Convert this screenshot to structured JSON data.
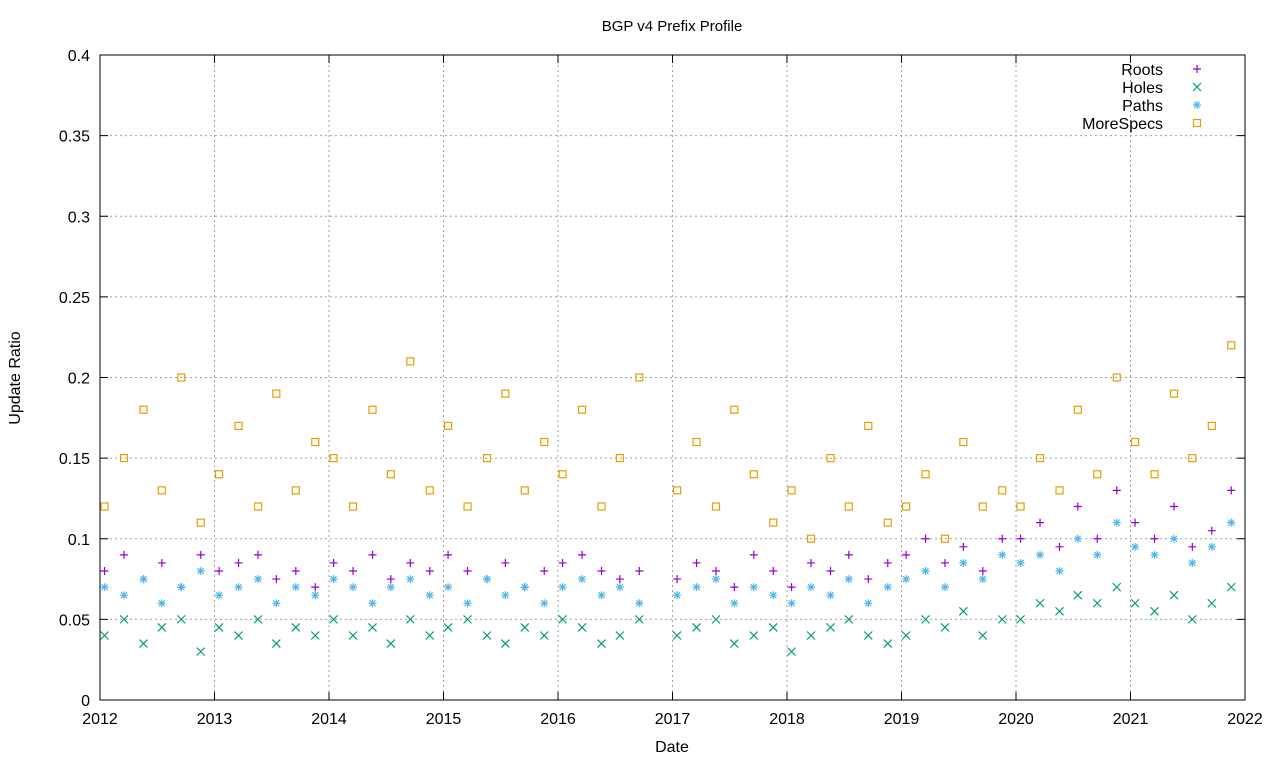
{
  "chart_data": {
    "type": "scatter",
    "title": "BGP v4 Prefix Profile",
    "xlabel": "Date",
    "ylabel": "Update Ratio",
    "xlim": [
      2012,
      2022
    ],
    "ylim": [
      0,
      0.4
    ],
    "grid": true,
    "legend_position": "top-right",
    "xticks": [
      "2012",
      "2013",
      "2014",
      "2015",
      "2016",
      "2017",
      "2018",
      "2019",
      "2020",
      "2021",
      "2022"
    ],
    "yticks": [
      "0",
      "0.05",
      "0.1",
      "0.15",
      "0.2",
      "0.25",
      "0.3",
      "0.35",
      "0.4"
    ],
    "x": [
      2012.04,
      2012.21,
      2012.38,
      2012.54,
      2012.71,
      2012.88,
      2013.04,
      2013.21,
      2013.38,
      2013.54,
      2013.71,
      2013.88,
      2014.04,
      2014.21,
      2014.38,
      2014.54,
      2014.71,
      2014.88,
      2015.04,
      2015.21,
      2015.38,
      2015.54,
      2015.71,
      2015.88,
      2016.04,
      2016.21,
      2016.38,
      2016.54,
      2016.71,
      2017.04,
      2017.21,
      2017.38,
      2017.54,
      2017.71,
      2017.88,
      2018.04,
      2018.21,
      2018.38,
      2018.54,
      2018.71,
      2018.88,
      2019.04,
      2019.21,
      2019.38,
      2019.54,
      2019.71,
      2019.88,
      2020.04,
      2020.21,
      2020.38,
      2020.54,
      2020.71,
      2020.88,
      2021.04,
      2021.21,
      2021.38,
      2021.54,
      2021.71,
      2021.88
    ],
    "series": [
      {
        "name": "Roots",
        "color": "#9400d3",
        "marker": "plus",
        "values": [
          0.08,
          0.09,
          0.075,
          0.085,
          0.07,
          0.09,
          0.08,
          0.085,
          0.09,
          0.075,
          0.08,
          0.07,
          0.085,
          0.08,
          0.09,
          0.075,
          0.085,
          0.08,
          0.09,
          0.08,
          0.075,
          0.085,
          0.07,
          0.08,
          0.085,
          0.09,
          0.08,
          0.075,
          0.08,
          0.075,
          0.085,
          0.08,
          0.07,
          0.09,
          0.08,
          0.07,
          0.085,
          0.08,
          0.09,
          0.075,
          0.085,
          0.09,
          0.1,
          0.085,
          0.095,
          0.08,
          0.1,
          0.1,
          0.11,
          0.095,
          0.12,
          0.1,
          0.13,
          0.11,
          0.1,
          0.12,
          0.095,
          0.105,
          0.13
        ]
      },
      {
        "name": "Holes",
        "color": "#009e73",
        "marker": "cross",
        "values": [
          0.04,
          0.05,
          0.035,
          0.045,
          0.05,
          0.03,
          0.045,
          0.04,
          0.05,
          0.035,
          0.045,
          0.04,
          0.05,
          0.04,
          0.045,
          0.035,
          0.05,
          0.04,
          0.045,
          0.05,
          0.04,
          0.035,
          0.045,
          0.04,
          0.05,
          0.045,
          0.035,
          0.04,
          0.05,
          0.04,
          0.045,
          0.05,
          0.035,
          0.04,
          0.045,
          0.03,
          0.04,
          0.045,
          0.05,
          0.04,
          0.035,
          0.04,
          0.05,
          0.045,
          0.055,
          0.04,
          0.05,
          0.05,
          0.06,
          0.055,
          0.065,
          0.06,
          0.07,
          0.06,
          0.055,
          0.065,
          0.05,
          0.06,
          0.07
        ]
      },
      {
        "name": "Paths",
        "color": "#56b4e9",
        "marker": "star",
        "values": [
          0.07,
          0.065,
          0.075,
          0.06,
          0.07,
          0.08,
          0.065,
          0.07,
          0.075,
          0.06,
          0.07,
          0.065,
          0.075,
          0.07,
          0.06,
          0.07,
          0.075,
          0.065,
          0.07,
          0.06,
          0.075,
          0.065,
          0.07,
          0.06,
          0.07,
          0.075,
          0.065,
          0.07,
          0.06,
          0.065,
          0.07,
          0.075,
          0.06,
          0.07,
          0.065,
          0.06,
          0.07,
          0.065,
          0.075,
          0.06,
          0.07,
          0.075,
          0.08,
          0.07,
          0.085,
          0.075,
          0.09,
          0.085,
          0.09,
          0.08,
          0.1,
          0.09,
          0.11,
          0.095,
          0.09,
          0.1,
          0.085,
          0.095,
          0.11
        ]
      },
      {
        "name": "MoreSpecs",
        "color": "#e69f00",
        "marker": "square",
        "values": [
          0.12,
          0.15,
          0.18,
          0.13,
          0.2,
          0.11,
          0.14,
          0.17,
          0.12,
          0.19,
          0.13,
          0.16,
          0.15,
          0.12,
          0.18,
          0.14,
          0.21,
          0.13,
          0.17,
          0.12,
          0.15,
          0.19,
          0.13,
          0.16,
          0.14,
          0.18,
          0.12,
          0.15,
          0.2,
          0.13,
          0.16,
          0.12,
          0.18,
          0.14,
          0.11,
          0.13,
          0.1,
          0.15,
          0.12,
          0.17,
          0.11,
          0.12,
          0.14,
          0.1,
          0.16,
          0.12,
          0.13,
          0.12,
          0.15,
          0.13,
          0.18,
          0.14,
          0.2,
          0.16,
          0.14,
          0.19,
          0.15,
          0.17,
          0.22
        ]
      }
    ]
  }
}
